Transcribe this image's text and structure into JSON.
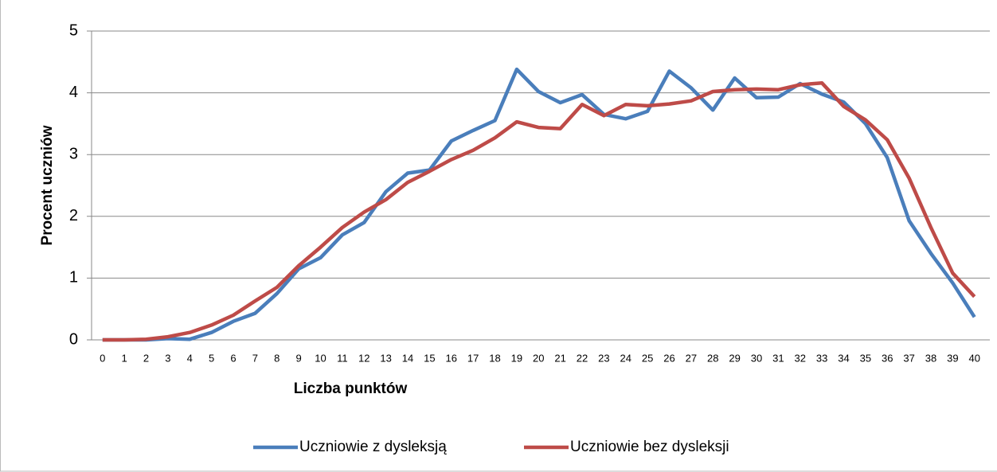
{
  "chart_data": {
    "type": "line",
    "xlabel": "Liczba punktów",
    "ylabel": "Procent uczniów",
    "categories": [
      "0",
      "1",
      "2",
      "3",
      "4",
      "5",
      "6",
      "7",
      "8",
      "9",
      "10",
      "11",
      "12",
      "13",
      "14",
      "15",
      "16",
      "17",
      "18",
      "19",
      "20",
      "21",
      "22",
      "23",
      "24",
      "25",
      "26",
      "27",
      "28",
      "29",
      "30",
      "31",
      "32",
      "33",
      "34",
      "35",
      "36",
      "37",
      "38",
      "39",
      "40"
    ],
    "series": [
      {
        "name": "Uczniowie z dysleksją",
        "color": "#4a7ebb",
        "values": [
          0,
          0,
          0,
          0.02,
          0.01,
          0.12,
          0.3,
          0.43,
          0.75,
          1.15,
          1.33,
          1.7,
          1.9,
          2.4,
          2.7,
          2.75,
          3.22,
          3.39,
          3.55,
          4.38,
          4.02,
          3.84,
          3.97,
          3.65,
          3.58,
          3.7,
          4.35,
          4.08,
          3.72,
          4.24,
          3.92,
          3.93,
          4.15,
          3.98,
          3.85,
          3.5,
          2.95,
          1.93,
          1.4,
          0.92,
          0.37
        ]
      },
      {
        "name": "Uczniowie bez dysleksji",
        "color": "#be4b48",
        "values": [
          0,
          0,
          0.01,
          0.05,
          0.12,
          0.24,
          0.4,
          0.63,
          0.85,
          1.2,
          1.5,
          1.82,
          2.07,
          2.27,
          2.55,
          2.73,
          2.92,
          3.07,
          3.27,
          3.53,
          3.44,
          3.42,
          3.81,
          3.63,
          3.81,
          3.79,
          3.82,
          3.87,
          4.02,
          4.05,
          4.06,
          4.05,
          4.13,
          4.16,
          3.78,
          3.56,
          3.24,
          2.62,
          1.82,
          1.08,
          0.7
        ]
      }
    ],
    "ylim": [
      0,
      5
    ],
    "yticks": [
      0,
      1,
      2,
      3,
      4,
      5
    ],
    "grid": true,
    "legend": "bottom"
  }
}
